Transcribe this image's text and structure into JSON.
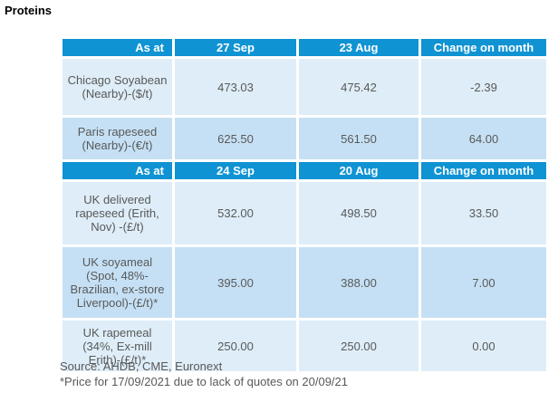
{
  "page": {
    "title": "Proteins"
  },
  "colors": {
    "header_bg": "#0F93D3",
    "header_text": "#FFFFFF",
    "row_light": "#DEEDF8",
    "row_dark": "#C5E0F4",
    "body_text": "#595959"
  },
  "table": {
    "sections": [
      {
        "header": {
          "as_at": "As at",
          "current": "27 Sep",
          "previous": "23 Aug",
          "change": "Change on month"
        },
        "rows": [
          {
            "label": "Chicago Soyabean\n(Nearby)-($/t)",
            "current": "473.03",
            "previous": "475.42",
            "change": "-2.39"
          },
          {
            "label": "Paris rapeseed\n(Nearby)-(€/t)",
            "current": "625.50",
            "previous": "561.50",
            "change": "64.00"
          }
        ]
      },
      {
        "header": {
          "as_at": "As at",
          "current": "24 Sep",
          "previous": "20 Aug",
          "change": "Change on month"
        },
        "rows": [
          {
            "label": "UK delivered\nrapeseed (Erith,\nNov) -(£/t)",
            "current": "532.00",
            "previous": "498.50",
            "change": "33.50"
          },
          {
            "label": "UK soyameal\n(Spot, 48%-\nBrazilian, ex-store\nLiverpool)-(£/t)*",
            "current": "395.00",
            "previous": "388.00",
            "change": "7.00"
          },
          {
            "label": "UK rapemeal\n(34%, Ex-mill\nErith)-(£/t)*",
            "current": "250.00",
            "previous": "250.00",
            "change": "0.00"
          }
        ]
      }
    ]
  },
  "footer": {
    "source": "Source: AHDB, CME, Euronext",
    "note": "*Price for 17/09/2021 due to lack of quotes on 20/09/21"
  }
}
